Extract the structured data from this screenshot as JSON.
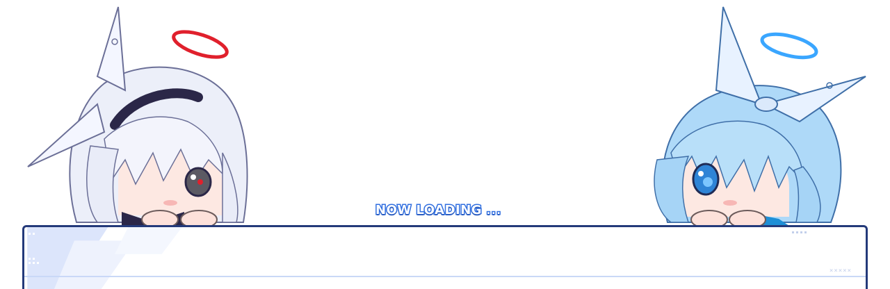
{
  "loading": {
    "word1": "NOW LOADING",
    "dots": "..."
  },
  "panel": {
    "corner_marks": "×××××"
  },
  "colors": {
    "text_fill": "#ffffff",
    "text_outline": "#2f6ee0",
    "panel_border": "#243a7a",
    "halo_left": "#e0202c",
    "halo_right": "#3aa6ff",
    "hair_left": "#eef0fb",
    "hair_right": "#a9d6f7"
  },
  "characters": {
    "left": {
      "icon": "silver-haired-chibi-peeking"
    },
    "right": {
      "icon": "blue-haired-chibi-peeking"
    }
  }
}
